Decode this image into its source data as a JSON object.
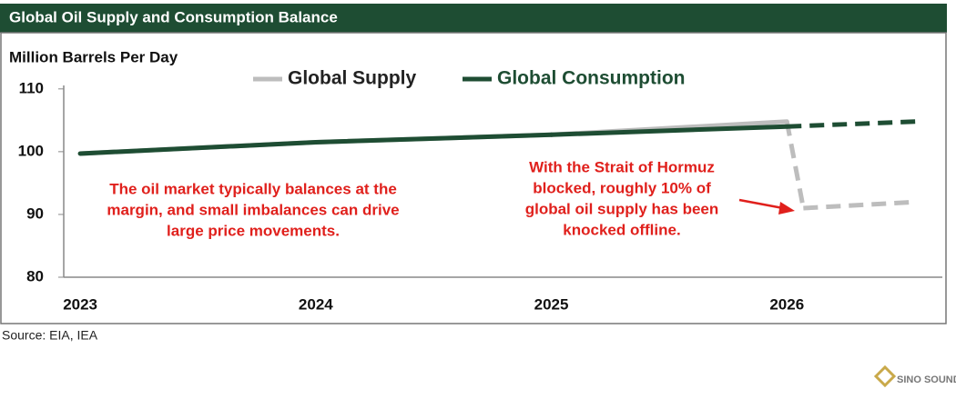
{
  "chart_data": {
    "type": "line",
    "title": "Global Oil Supply and Consumption Balance",
    "y_label": "Million Barrels Per Day",
    "xlim": [
      2022.93,
      2026.66
    ],
    "xticks": [
      2023,
      2024,
      2025,
      2026
    ],
    "ylim": [
      80,
      112
    ],
    "yticks": [
      80,
      90,
      100,
      110
    ],
    "dashed_after": 2026,
    "series": [
      {
        "name": "Global Supply",
        "color": "#bdbdbd",
        "x": [
          2023,
          2024,
          2025,
          2026,
          2026.07,
          2026.55
        ],
        "values": [
          99.7,
          101.5,
          102.7,
          104.8,
          91,
          92
        ]
      },
      {
        "name": "Global Consumption",
        "color": "#1e4d33",
        "x": [
          2023,
          2024,
          2025,
          2026,
          2026.55
        ],
        "values": [
          99.7,
          101.5,
          102.7,
          104,
          104.8
        ]
      }
    ],
    "annotations": [
      {
        "lines": [
          "The oil market typically balances at the",
          "margin, and small imbalances can drive",
          "large price movements."
        ],
        "color": "#e0201c"
      },
      {
        "lines": [
          "With the Strait of Hormuz",
          "blocked, roughly 10% of",
          "global oil supply has been",
          "knocked offline."
        ],
        "color": "#e0201c"
      }
    ],
    "source": "Source: EIA, IEA"
  },
  "watermark": "SINO SOUND"
}
